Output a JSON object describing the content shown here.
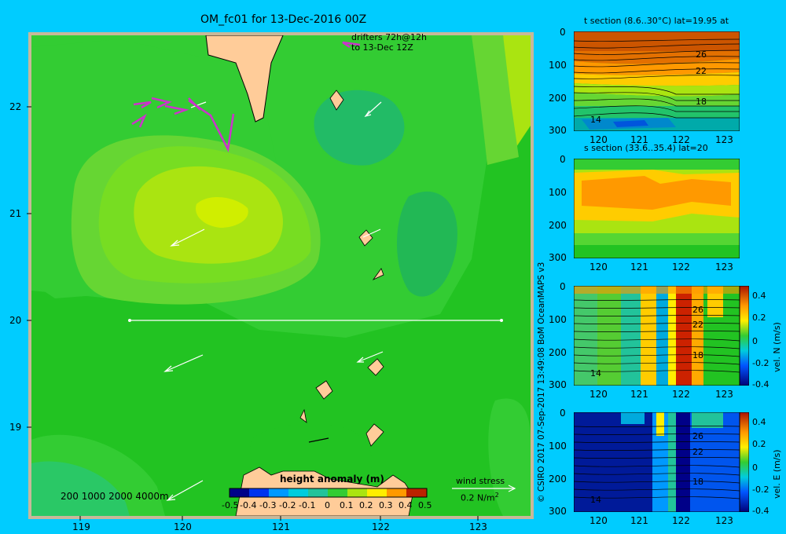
{
  "main_map": {
    "title": "OM_fc01 for 13-Dec-2016 00Z",
    "drifters_line1": "drifters 72h@12h",
    "drifters_line2": "to 13-Dec 12Z",
    "x_ticks": [
      "119",
      "120",
      "121",
      "122",
      "123"
    ],
    "y_ticks": [
      "22",
      "21",
      "20",
      "19"
    ],
    "depth_legend": "200  1000  2000  4000m",
    "colorbar_title": "height anomaly (m)",
    "colorbar_ticks": [
      "-0.5",
      "-0.4",
      "-0.3",
      "-0.2",
      "-0.1",
      "0",
      "0.1",
      "0.2",
      "0.3",
      "0.4",
      "0.5"
    ],
    "wind_label": "wind stress",
    "wind_scale": "0.2 N/m",
    "wind_scale_exp": "2",
    "colors": {
      "background": "#00ccff",
      "frame": "#c8b89a",
      "land": "#ffcc99",
      "drifter": "#cc33cc"
    }
  },
  "copyright": "© CSIRO 2017   07-Sep-2017 13:49:08 BoM OceanMAPS v3",
  "panels": {
    "t_section": {
      "title": "t section (8.6..30°C) lat=19.95 at",
      "y_ticks": [
        "0",
        "100",
        "200",
        "300"
      ],
      "x_ticks": [
        "120",
        "121",
        "122",
        "123"
      ],
      "contour_labels": [
        "26",
        "22",
        "18",
        "14"
      ]
    },
    "s_section": {
      "title": "s section (33.6..35.4) lat=20",
      "y_ticks": [
        "0",
        "100",
        "200",
        "300"
      ],
      "x_ticks": [
        "120",
        "121",
        "122",
        "123"
      ]
    },
    "vn_section": {
      "y_ticks": [
        "0",
        "100",
        "200",
        "300"
      ],
      "x_ticks": [
        "120",
        "121",
        "122",
        "123"
      ],
      "contour_labels": [
        "26",
        "22",
        "18",
        "14"
      ],
      "colorbar_ticks": [
        "0.4",
        "0.2",
        "0",
        "-0.2",
        "-0.4"
      ],
      "colorbar_label": "vel. N (m/s)"
    },
    "ve_section": {
      "y_ticks": [
        "0",
        "100",
        "200",
        "300"
      ],
      "x_ticks": [
        "120",
        "121",
        "122",
        "123"
      ],
      "contour_labels": [
        "26",
        "22",
        "18",
        "14"
      ],
      "colorbar_ticks": [
        "0.4",
        "0.2",
        "0",
        "-0.2",
        "-0.4"
      ],
      "colorbar_label": "vel. E (m/s)"
    }
  }
}
